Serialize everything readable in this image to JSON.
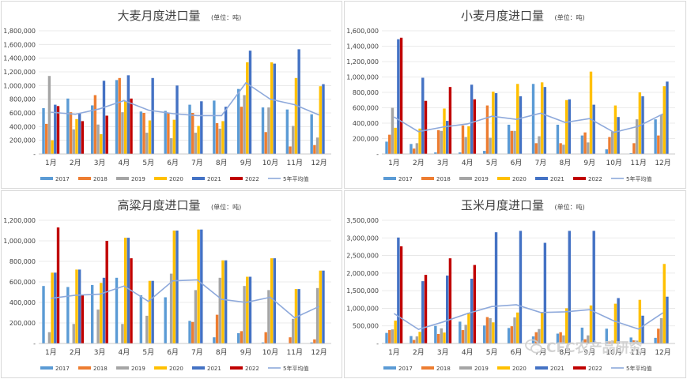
{
  "watermark": "CFC农产品研究",
  "chart_data": [
    {
      "type": "bar",
      "title": "大麦月度进口量",
      "unit": "(单位：吨)",
      "categories": [
        "1月",
        "2月",
        "3月",
        "4月",
        "5月",
        "6月",
        "7月",
        "8月",
        "9月",
        "10月",
        "11月",
        "12月"
      ],
      "ylim": [
        0,
        1800000
      ],
      "yticks": [
        "-",
        "200,000",
        "400,000",
        "600,000",
        "800,000",
        "1,000,000",
        "1,200,000",
        "1,400,000",
        "1,600,000",
        "1,800,000"
      ],
      "series": [
        {
          "name": "2017",
          "color": "#5B9BD5",
          "values": [
            670000,
            810000,
            710000,
            1080000,
            620000,
            630000,
            720000,
            780000,
            950000,
            680000,
            650000,
            580000
          ]
        },
        {
          "name": "2018",
          "color": "#ED7D31",
          "values": [
            440000,
            610000,
            860000,
            1110000,
            600000,
            600000,
            600000,
            450000,
            690000,
            320000,
            110000,
            130000
          ]
        },
        {
          "name": "2019",
          "color": "#A5A5A5",
          "values": [
            1140000,
            360000,
            430000,
            610000,
            310000,
            230000,
            310000,
            370000,
            860000,
            680000,
            410000,
            240000
          ]
        },
        {
          "name": "2020",
          "color": "#FFC000",
          "values": [
            200000,
            510000,
            290000,
            770000,
            490000,
            500000,
            410000,
            480000,
            1340000,
            1340000,
            1110000,
            990000
          ]
        },
        {
          "name": "2021",
          "color": "#4472C4",
          "values": [
            720000,
            590000,
            1070000,
            1150000,
            1110000,
            1000000,
            770000,
            690000,
            1510000,
            1320000,
            1530000,
            1020000
          ]
        },
        {
          "name": "2022",
          "color": "#C00000",
          "values": [
            700000,
            480000,
            560000,
            810000,
            0,
            0,
            0,
            0,
            0,
            0,
            0,
            0
          ]
        }
      ],
      "avg": {
        "name": "5年平均值",
        "color": "#8EA9DB",
        "values": [
          610000,
          580000,
          660000,
          780000,
          640000,
          590000,
          560000,
          560000,
          1040000,
          800000,
          720000,
          570000
        ]
      }
    },
    {
      "type": "bar",
      "title": "小麦月度进口量",
      "unit": "(单位：吨)",
      "categories": [
        "1月",
        "2月",
        "3月",
        "4月",
        "5月",
        "6月",
        "7月",
        "8月",
        "9月",
        "10月",
        "11月",
        "12月"
      ],
      "ylim": [
        0,
        1600000
      ],
      "yticks": [
        "-",
        "200,000",
        "400,000",
        "600,000",
        "800,000",
        "1,000,000",
        "1,200,000",
        "1,400,000",
        "1,600,000"
      ],
      "series": [
        {
          "name": "2017",
          "color": "#5B9BD5",
          "values": [
            160000,
            130000,
            20000,
            20000,
            40000,
            380000,
            910000,
            380000,
            240000,
            60000,
            10000,
            450000
          ]
        },
        {
          "name": "2018",
          "color": "#ED7D31",
          "values": [
            250000,
            70000,
            310000,
            370000,
            630000,
            300000,
            140000,
            140000,
            280000,
            220000,
            140000,
            240000
          ]
        },
        {
          "name": "2019",
          "color": "#A5A5A5",
          "values": [
            600000,
            140000,
            300000,
            220000,
            210000,
            300000,
            230000,
            120000,
            150000,
            290000,
            450000,
            510000
          ]
        },
        {
          "name": "2020",
          "color": "#FFC000",
          "values": [
            340000,
            330000,
            590000,
            360000,
            810000,
            910000,
            930000,
            700000,
            1070000,
            630000,
            800000,
            880000
          ]
        },
        {
          "name": "2021",
          "color": "#4472C4",
          "values": [
            1490000,
            990000,
            430000,
            900000,
            790000,
            750000,
            870000,
            710000,
            640000,
            480000,
            750000,
            940000
          ]
        },
        {
          "name": "2022",
          "color": "#C00000",
          "values": [
            1510000,
            690000,
            870000,
            710000,
            0,
            0,
            0,
            0,
            0,
            0,
            0,
            0
          ]
        }
      ],
      "avg": {
        "name": "5年平均值",
        "color": "#8EA9DB",
        "values": [
          480000,
          290000,
          350000,
          390000,
          490000,
          450000,
          530000,
          410000,
          460000,
          280000,
          360000,
          520000
        ]
      }
    },
    {
      "type": "bar",
      "title": "高粱月度进口量",
      "unit": "(单位：吨)",
      "categories": [
        "1月",
        "2月",
        "3月",
        "4月",
        "5月",
        "6月",
        "7月",
        "8月",
        "9月",
        "10月",
        "11月",
        "12月"
      ],
      "ylim": [
        0,
        1200000
      ],
      "yticks": [
        "-",
        "200,000",
        "400,000",
        "600,000",
        "800,000",
        "1,000,000",
        "1,200,000"
      ],
      "series": [
        {
          "name": "2017",
          "color": "#5B9BD5",
          "values": [
            560000,
            550000,
            570000,
            640000,
            470000,
            450000,
            220000,
            60000,
            100000,
            10000,
            0,
            10000
          ]
        },
        {
          "name": "2018",
          "color": "#ED7D31",
          "values": [
            0,
            0,
            0,
            0,
            0,
            0,
            210000,
            280000,
            120000,
            110000,
            60000,
            40000
          ]
        },
        {
          "name": "2019",
          "color": "#A5A5A5",
          "values": [
            110000,
            190000,
            330000,
            190000,
            270000,
            680000,
            520000,
            640000,
            560000,
            520000,
            240000,
            540000
          ]
        },
        {
          "name": "2020",
          "color": "#FFC000",
          "values": [
            690000,
            720000,
            590000,
            1030000,
            610000,
            1100000,
            1110000,
            810000,
            650000,
            830000,
            530000,
            710000
          ]
        },
        {
          "name": "2021",
          "color": "#4472C4",
          "values": [
            690000,
            720000,
            640000,
            1030000,
            610000,
            1100000,
            1110000,
            810000,
            650000,
            830000,
            530000,
            710000
          ]
        },
        {
          "name": "2022",
          "color": "#C00000",
          "values": [
            1130000,
            470000,
            1000000,
            830000,
            0,
            0,
            0,
            0,
            0,
            0,
            0,
            0
          ]
        }
      ],
      "avg": {
        "name": "5年平均值",
        "color": "#8EA9DB",
        "values": [
          440000,
          470000,
          480000,
          560000,
          410000,
          610000,
          620000,
          430000,
          400000,
          450000,
          250000,
          360000
        ]
      }
    },
    {
      "type": "bar",
      "title": "玉米月度进口量",
      "unit": "(单位：吨)",
      "categories": [
        "1月",
        "2月",
        "3月",
        "4月",
        "5月",
        "6月",
        "7月",
        "8月",
        "9月",
        "10月",
        "11月",
        "12月"
      ],
      "ylim": [
        0,
        3500000
      ],
      "yticks": [
        "-",
        "500,000",
        "1,000,000",
        "1,500,000",
        "2,000,000",
        "2,500,000",
        "3,000,000",
        "3,500,000"
      ],
      "series": [
        {
          "name": "2017",
          "color": "#5B9BD5",
          "values": [
            300000,
            210000,
            500000,
            620000,
            510000,
            440000,
            200000,
            280000,
            450000,
            420000,
            170000,
            160000
          ]
        },
        {
          "name": "2018",
          "color": "#ED7D31",
          "values": [
            380000,
            100000,
            270000,
            380000,
            750000,
            490000,
            320000,
            320000,
            120000,
            70000,
            90000,
            420000
          ]
        },
        {
          "name": "2019",
          "color": "#A5A5A5",
          "values": [
            400000,
            200000,
            430000,
            530000,
            720000,
            740000,
            410000,
            230000,
            230000,
            80000,
            80000,
            720000
          ]
        },
        {
          "name": "2020",
          "color": "#FFC000",
          "values": [
            650000,
            330000,
            310000,
            870000,
            600000,
            880000,
            890000,
            1000000,
            1080000,
            1130000,
            1240000,
            2260000
          ]
        },
        {
          "name": "2021",
          "color": "#4472C4",
          "values": [
            3010000,
            1770000,
            1930000,
            1840000,
            3160000,
            3200000,
            2860000,
            3200000,
            3200000,
            1290000,
            790000,
            1330000
          ]
        },
        {
          "name": "2022",
          "color": "#C00000",
          "values": [
            2760000,
            1950000,
            2420000,
            2230000,
            0,
            0,
            0,
            0,
            0,
            0,
            0,
            0
          ]
        }
      ],
      "avg": {
        "name": "5年平均值",
        "color": "#8EA9DB",
        "values": [
          850000,
          400000,
          610000,
          850000,
          1050000,
          1100000,
          880000,
          900000,
          960000,
          640000,
          410000,
          870000
        ]
      }
    }
  ]
}
